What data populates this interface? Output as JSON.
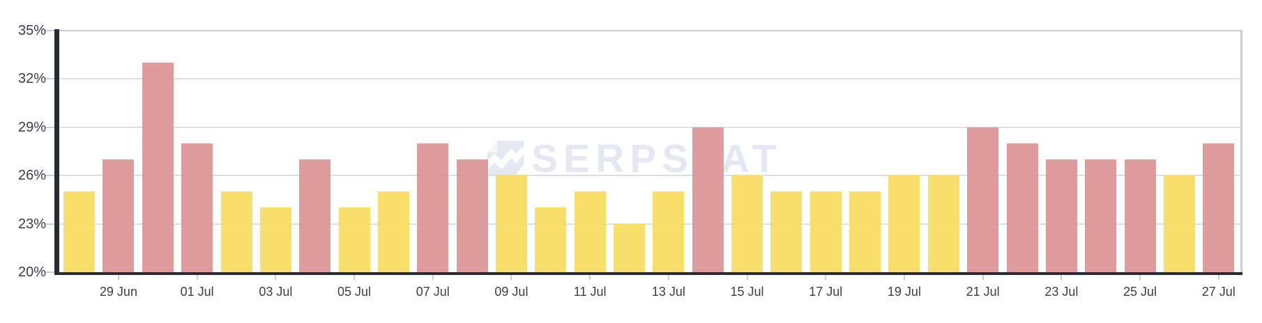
{
  "watermark": {
    "text": "SERPSTAT",
    "icon": "serpstat-arrow-chart-logo"
  },
  "colors": {
    "background": "#FFFFFF",
    "bar_yellow": "#F7DC5C",
    "bar_red": "#DC9191",
    "axis_spine": "#262B34",
    "grid_line": "#D9DEE8",
    "plot_border": "#C6CDDB",
    "tick_label": "#383D48",
    "watermark": "#E3E8F2"
  },
  "chart_data": {
    "type": "bar",
    "title": "",
    "xlabel": "",
    "ylabel": "",
    "unit": "%",
    "ylim": [
      20,
      35
    ],
    "yticks": [
      20,
      23,
      26,
      29,
      32,
      35
    ],
    "ytick_suffix": "%",
    "grid": true,
    "legend": "none",
    "x": [
      "28 Jun",
      "29 Jun",
      "30 Jun",
      "01 Jul",
      "02 Jul",
      "03 Jul",
      "04 Jul",
      "05 Jul",
      "06 Jul",
      "07 Jul",
      "08 Jul",
      "09 Jul",
      "10 Jul",
      "11 Jul",
      "12 Jul",
      "13 Jul",
      "14 Jul",
      "15 Jul",
      "16 Jul",
      "17 Jul",
      "18 Jul",
      "19 Jul",
      "20 Jul",
      "21 Jul",
      "22 Jul",
      "23 Jul",
      "24 Jul",
      "25 Jul",
      "26 Jul",
      "27 Jul"
    ],
    "values": [
      25,
      27,
      33,
      28,
      25,
      24,
      27,
      24,
      25,
      28,
      27,
      26,
      24,
      25,
      23,
      25,
      29,
      26,
      25,
      25,
      25,
      26,
      26,
      29,
      28,
      27,
      27,
      27,
      26,
      28
    ],
    "bar_colors": [
      "yellow",
      "red",
      "red",
      "red",
      "yellow",
      "yellow",
      "red",
      "yellow",
      "yellow",
      "red",
      "red",
      "yellow",
      "yellow",
      "yellow",
      "yellow",
      "yellow",
      "red",
      "yellow",
      "yellow",
      "yellow",
      "yellow",
      "yellow",
      "yellow",
      "red",
      "red",
      "red",
      "red",
      "red",
      "yellow",
      "red"
    ],
    "xtick_labels": [
      "29 Jun",
      "01 Jul",
      "03 Jul",
      "05 Jul",
      "07 Jul",
      "09 Jul",
      "11 Jul",
      "13 Jul",
      "15 Jul",
      "17 Jul",
      "19 Jul",
      "21 Jul",
      "23 Jul",
      "25 Jul",
      "27 Jul"
    ]
  }
}
